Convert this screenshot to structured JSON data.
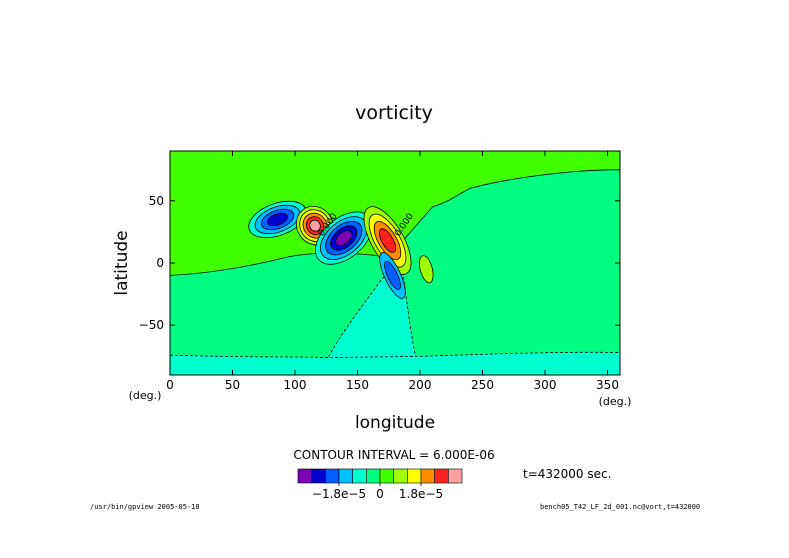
{
  "chart_data": {
    "type": "heatmap",
    "title": "vorticity",
    "xlabel": "longitude",
    "ylabel": "latitude",
    "x_unit": "(deg.)",
    "y_unit": "(deg.)",
    "xlim": [
      0,
      360
    ],
    "ylim": [
      -90,
      90
    ],
    "xticks": [
      0,
      50,
      100,
      150,
      200,
      250,
      300,
      350
    ],
    "yticks": [
      -50,
      0,
      50
    ],
    "contour_interval_text": "CONTOUR INTERVAL = 6.000E-06",
    "time_text": "t=432000 sec.",
    "colorbar": {
      "colors": [
        "#7a00b4",
        "#0000cd",
        "#0060ff",
        "#00bfff",
        "#00ffd0",
        "#00ff80",
        "#40ff00",
        "#a0ff00",
        "#ffff00",
        "#ff8c00",
        "#ff2020",
        "#ffa0a0"
      ],
      "tick_labels": [
        "−1.8e−5",
        "0",
        "1.8e−5"
      ],
      "tick_values": [
        -1.8e-05,
        0,
        1.8e-05
      ]
    },
    "regions": {
      "background_level": "#40ff00",
      "southern_band": "#00ff80",
      "south_pole_band": "#00ffd0",
      "tongue": "#00ffd0"
    },
    "vortices": [
      {
        "lon": 86,
        "lat": 35,
        "levels": [
          "#00ffd0",
          "#00bfff",
          "#0060ff",
          "#0000cd"
        ]
      },
      {
        "lon": 116,
        "lat": 30,
        "levels": [
          "#a0ff00",
          "#ffff00",
          "#ff8c00",
          "#ff2020",
          "#ffa0a0"
        ]
      },
      {
        "lon": 139,
        "lat": 20,
        "levels": [
          "#00ffd0",
          "#00bfff",
          "#0060ff",
          "#0000cd",
          "#7a00b4"
        ]
      },
      {
        "lon": 174,
        "lat": 18,
        "levels": [
          "#a0ff00",
          "#ffff00",
          "#ff8c00",
          "#ff2020"
        ]
      },
      {
        "lon": 178,
        "lat": -10,
        "levels": [
          "#00bfff",
          "#0060ff"
        ]
      },
      {
        "lon": 205,
        "lat": -5,
        "levels": [
          "#a0ff00"
        ]
      }
    ],
    "contour_labels": [
      {
        "lon": 122,
        "lat": 21,
        "text": "0.000"
      },
      {
        "lon": 183,
        "lat": 21,
        "text": "0.000"
      }
    ]
  },
  "footer": {
    "left": "/usr/bin/gpview  2005-05-18",
    "right": "bench05_T42_LF_2d_001.nc@vort,t=432000"
  }
}
